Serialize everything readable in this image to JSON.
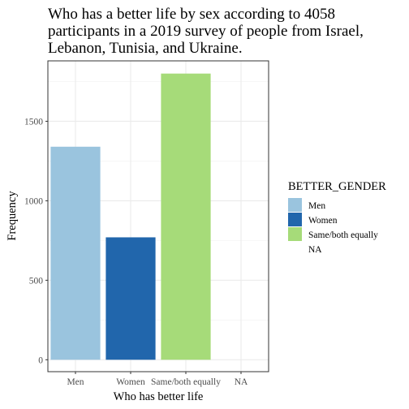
{
  "chart_data": {
    "type": "bar",
    "title_lines": [
      "Who has a better life by sex according to 4058",
      "participants in a 2019 survey of people from Israel,",
      "Lebanon, Tunisia, and Ukraine."
    ],
    "xlabel": "Who has better life",
    "ylabel": "Frequency",
    "categories": [
      "Men",
      "Women",
      "Same/both equally",
      "NA"
    ],
    "values": [
      1340,
      770,
      1800,
      0
    ],
    "colors": [
      "#9ac4de",
      "#2166ac",
      "#a6db79",
      "#ffffff"
    ],
    "ylim": [
      -75,
      1880
    ],
    "yticks": [
      0,
      500,
      1000,
      1500
    ],
    "ytick_labels": [
      "0",
      "500",
      "1000",
      "1500"
    ],
    "grid": true,
    "legend": {
      "title": "BETTER_GENDER",
      "position": "right",
      "items": [
        "Men",
        "Women",
        "Same/both equally",
        "NA"
      ]
    }
  }
}
